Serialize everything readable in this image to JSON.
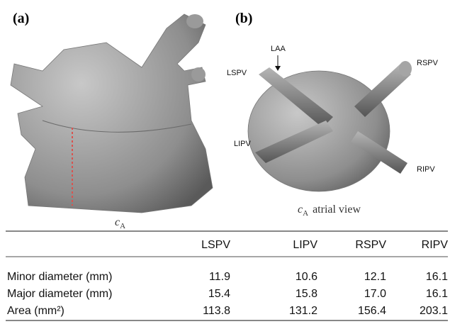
{
  "panels": [
    {
      "label": "(a)",
      "caption": {
        "symbol": "c",
        "subscript": "A"
      }
    },
    {
      "label": "(b)",
      "caption": {
        "symbol": "c",
        "subscript": "A",
        "text": "atrial view"
      },
      "annotations": [
        "LAA",
        "LSPV",
        "LIPV",
        "RSPV",
        "RIPV"
      ]
    }
  ],
  "table": {
    "header": [
      "LSPV",
      "LIPV",
      "RSPV",
      "RIPV"
    ],
    "rows": [
      [
        "Minor diameter (mm)",
        "11.9",
        "10.6",
        "12.1",
        "16.1"
      ],
      [
        "Major diameter (mm)",
        "15.4",
        "15.8",
        "17.0",
        "16.1"
      ],
      [
        "Area (mm²)",
        "113.8",
        "131.2",
        "156.4",
        "203.1"
      ]
    ]
  }
}
